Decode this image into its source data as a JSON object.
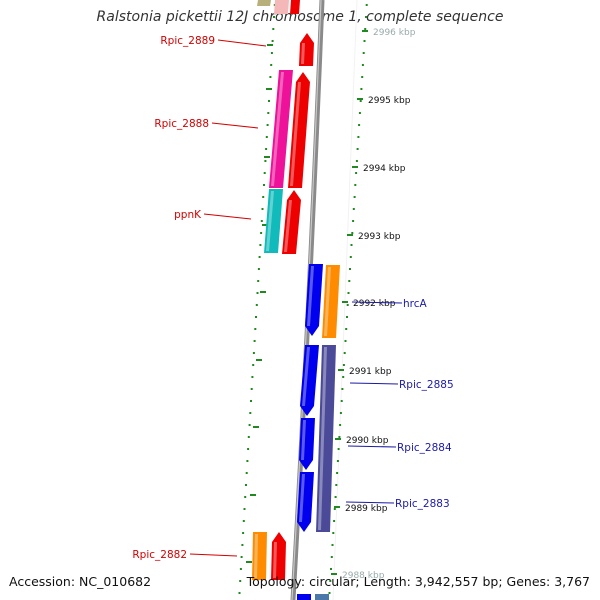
{
  "title": "Ralstonia pickettii 12J chromosome 1, complete sequence",
  "accession": "Accession: NC_010682",
  "topology": "Topology: circular; Length: 3,942,557 bp; Genes: 3,767",
  "ticks": [
    "2996 kbp",
    "2995 kbp",
    "2994 kbp",
    "2993 kbp",
    "2992 kbp",
    "2991 kbp",
    "2990 kbp",
    "2989 kbp",
    "2988 kbp"
  ],
  "genes_left": [
    {
      "id": "Rpic_2889",
      "color": "#d40000"
    },
    {
      "id": "Rpic_2888",
      "color": "#d40000"
    },
    {
      "id": "ppnK",
      "color": "#d40000"
    },
    {
      "id": "Rpic_2882",
      "color": "#d40000"
    }
  ],
  "genes_right": [
    {
      "id": "hrcA",
      "color": "#1a1aa8"
    },
    {
      "id": "Rpic_2885",
      "color": "#1a1aa8"
    },
    {
      "id": "Rpic_2884",
      "color": "#1a1aa8"
    },
    {
      "id": "Rpic_2883",
      "color": "#1a1aa8"
    }
  ],
  "colors": {
    "red": "#ee0000",
    "magenta": "#ee1199",
    "cyan": "#11bbbb",
    "orange": "#ff8c00",
    "blue": "#0000ee",
    "purple": "#4a4a99",
    "backbone": "#8a8a8a",
    "tick": "#228822"
  }
}
